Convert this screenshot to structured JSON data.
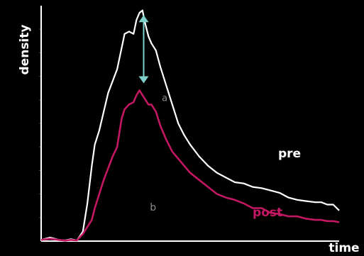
{
  "chart_data": {
    "type": "line",
    "xlabel": "time",
    "ylabel": "density",
    "xlim": [
      0,
      100
    ],
    "ylim": [
      0,
      100
    ],
    "grid": false,
    "y_ticks": [
      10,
      20,
      30,
      40,
      50,
      60,
      70,
      80,
      90
    ],
    "series": [
      {
        "name": "pre",
        "color": "#ffffff",
        "x": [
          0,
          3,
          6,
          8,
          10,
          12,
          14,
          15.5,
          17,
          18,
          19.5,
          21,
          22.5,
          24,
          25.5,
          27,
          28,
          29.5,
          31,
          32,
          33,
          34,
          35,
          36,
          37,
          38.5,
          40,
          42,
          44,
          46,
          48,
          50,
          53,
          56,
          59,
          62,
          65,
          68,
          71,
          74,
          77,
          80,
          83,
          86,
          89,
          92,
          94,
          96,
          98,
          100
        ],
        "y": [
          0.5,
          1.5,
          0.5,
          0.3,
          0.8,
          0.3,
          4,
          16,
          32,
          41,
          47,
          55,
          63,
          68,
          73,
          82,
          88,
          89,
          88,
          94,
          97,
          98,
          92,
          87,
          84,
          81,
          74,
          66,
          58,
          50,
          45,
          41,
          36,
          32,
          29,
          27,
          25,
          24.5,
          23,
          22.5,
          21.5,
          20.5,
          18.5,
          17.5,
          17,
          16.5,
          16.5,
          15.5,
          15.5,
          13
        ]
      },
      {
        "name": "post",
        "color": "#c21862",
        "x": [
          0,
          3,
          6,
          8,
          10,
          12,
          14,
          15.5,
          17,
          18,
          19.5,
          21,
          22.5,
          24,
          25.5,
          27,
          28,
          29.5,
          31,
          32,
          33,
          34,
          35,
          36,
          37,
          38.5,
          40,
          42,
          44,
          46,
          48,
          50,
          53,
          56,
          59,
          62,
          65,
          68,
          71,
          74,
          77,
          80,
          83,
          86,
          89,
          92,
          94,
          96,
          98,
          100
        ],
        "y": [
          0.5,
          1,
          0.5,
          0.2,
          0.5,
          0.3,
          3,
          6,
          9,
          14,
          20,
          26,
          31,
          36,
          40,
          52,
          56,
          58,
          59,
          62,
          64,
          62,
          60,
          58,
          58,
          55,
          49,
          43,
          38,
          35,
          32,
          29,
          26,
          23,
          20,
          18.5,
          17.5,
          16,
          14,
          14,
          12,
          11.5,
          10.5,
          10.5,
          9.5,
          9,
          9,
          8.5,
          8.5,
          8
        ]
      }
    ],
    "annotations": [
      {
        "text": "a",
        "x": 40.5,
        "y": 59.5
      },
      {
        "text": "b",
        "x": 36.5,
        "y": 13
      }
    ],
    "arrow": {
      "x": 34.4,
      "from_y": 96,
      "to_y": 67,
      "color": "#7fcfca"
    }
  }
}
